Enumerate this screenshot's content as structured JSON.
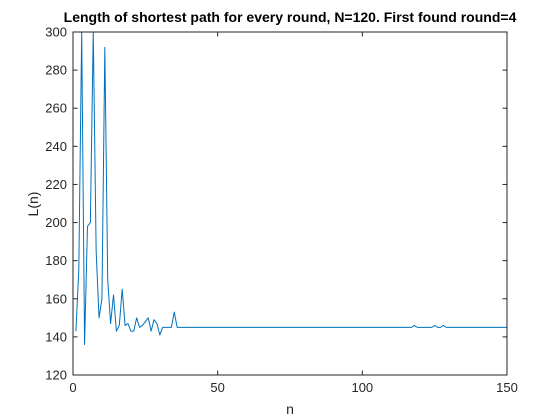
{
  "chart_data": {
    "type": "line",
    "title": "Length of shortest path for every round, N=120. First found round=4",
    "xlabel": "n",
    "ylabel": "L(n)",
    "xlim": [
      0,
      150
    ],
    "ylim": [
      120,
      300
    ],
    "xticks": [
      0,
      50,
      100,
      150
    ],
    "yticks": [
      120,
      140,
      160,
      180,
      200,
      220,
      240,
      260,
      280,
      300
    ],
    "grid": false,
    "box": true,
    "series": [
      {
        "color": "#0072bd",
        "x": [
          1,
          2,
          3,
          4,
          5,
          6,
          7,
          8,
          9,
          10,
          11,
          12,
          13,
          14,
          15,
          16,
          17,
          18,
          19,
          20,
          21,
          22,
          23,
          24,
          25,
          26,
          27,
          28,
          29,
          30,
          31,
          32,
          33,
          34,
          35,
          36,
          37,
          38,
          40,
          60,
          80,
          100,
          110,
          116,
          117,
          118,
          119,
          120,
          124,
          125,
          126,
          127,
          128,
          129,
          130,
          140,
          150
        ],
        "values": [
          143,
          175,
          300,
          136,
          198,
          200,
          300,
          185,
          150,
          160,
          292,
          170,
          147,
          162,
          143,
          146,
          165,
          146,
          147,
          143,
          143,
          150,
          145,
          146,
          148,
          150,
          143,
          149,
          147,
          141,
          145,
          145,
          145,
          145,
          153,
          145,
          145,
          145,
          145,
          145,
          145,
          145,
          145,
          145,
          145,
          146,
          145,
          145,
          145,
          146,
          145,
          145,
          146,
          145,
          145,
          145,
          145
        ]
      }
    ]
  }
}
